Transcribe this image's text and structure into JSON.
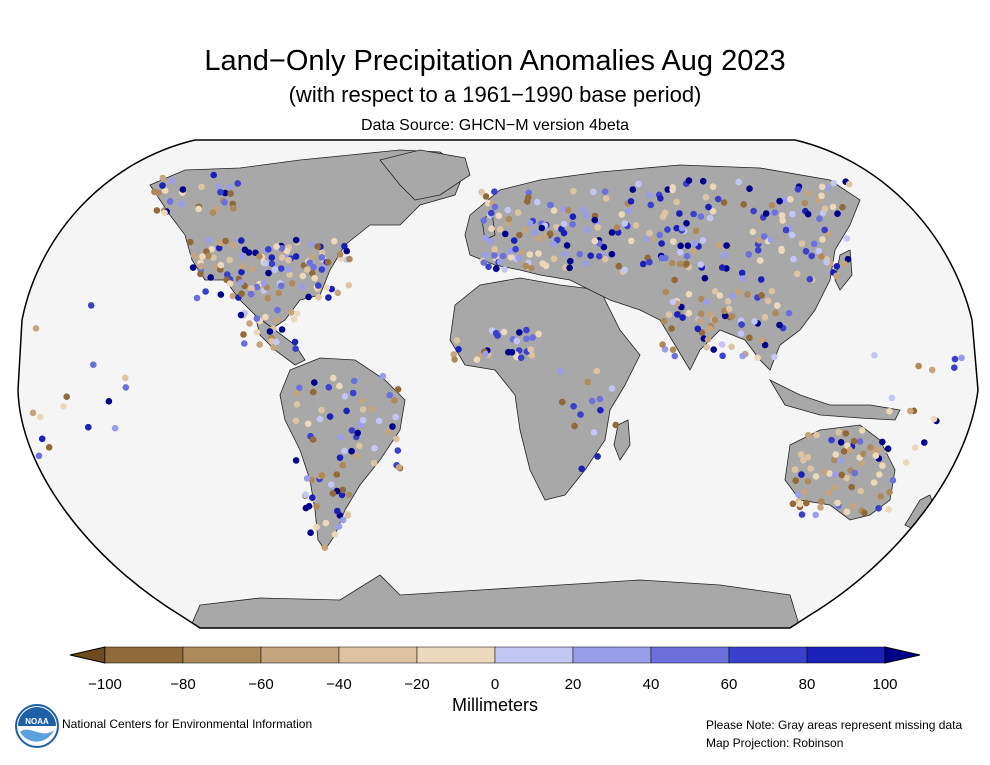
{
  "header": {
    "title": "Land−Only Precipitation Anomalies Aug 2023",
    "subtitle": "(with respect to a 1961−1990 base period)",
    "source": "Data Source: GHCN−M version 4beta"
  },
  "legend": {
    "units": "Millimeters",
    "ticks": [
      "−100",
      "−80",
      "−60",
      "−40",
      "−20",
      "0",
      "20",
      "40",
      "60",
      "80",
      "100"
    ],
    "colors": [
      "#6e4a1e",
      "#8f6a3a",
      "#ad8a5c",
      "#c4a57f",
      "#dcc4a3",
      "#ecd9bc",
      "#c3c6f3",
      "#9a9ee8",
      "#6b70dc",
      "#3a40cc",
      "#1a20b8",
      "#00008b"
    ]
  },
  "colors": {
    "land": "#a8a8a8",
    "ocean": "#f5f5f5",
    "frame": "#000000"
  },
  "footer": {
    "left": "National Centers for Environmental Information",
    "right_line1": "Please Note: Gray areas represent missing data",
    "right_line2": "Map Projection: Robinson",
    "logo_text": "NOAA"
  }
}
